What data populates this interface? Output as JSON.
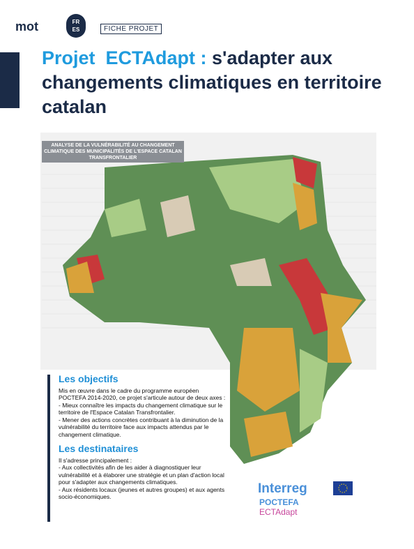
{
  "header": {
    "logo": "mot",
    "badge": [
      "FR",
      "ES"
    ],
    "label": "FICHE PROJET"
  },
  "title": {
    "highlight": "Projet  ECTAdapt :",
    "rest": "s'adapter aux changements climatiques en territoire catalan"
  },
  "map": {
    "caption": "ANALYSE DE LA VULNÉRABILITÉ AU CHANGEMENT CLIMATIQUE DES MUNICIPALITÉS DE L'ESPACE CATALAN TRANSFRONTALIER"
  },
  "sections": [
    {
      "heading": "Les objectifs",
      "intro": "Mis en œuvre dans le cadre du programme européen POCTEFA 2014-2020, ce projet s'articule autour de deux axes :",
      "items": [
        "- Mieux connaître les impacts du changement climatique sur le territoire de l'Espace Catalan Transfrontalier.",
        "- Mener des actions concrètes contribuant à la diminution de la vulnérabilité du territoire face aux impacts attendus par le changement climatique."
      ]
    },
    {
      "heading": "Les destinataires",
      "intro": "Il s'adresse principalement :",
      "items": [
        "- Aux collectivités afin de les aider à diagnostiquer leur vulnérabilité et à élaborer une stratégie et un plan d'action local pour s'adapter aux changements climatiques.",
        "- Aux résidents locaux (jeunes et autres groupes) et aux agents socio-économiques."
      ]
    }
  ],
  "footer_logo": {
    "brand": "Interreg",
    "program": "POCTEFA",
    "project": "ECTAdapt"
  }
}
